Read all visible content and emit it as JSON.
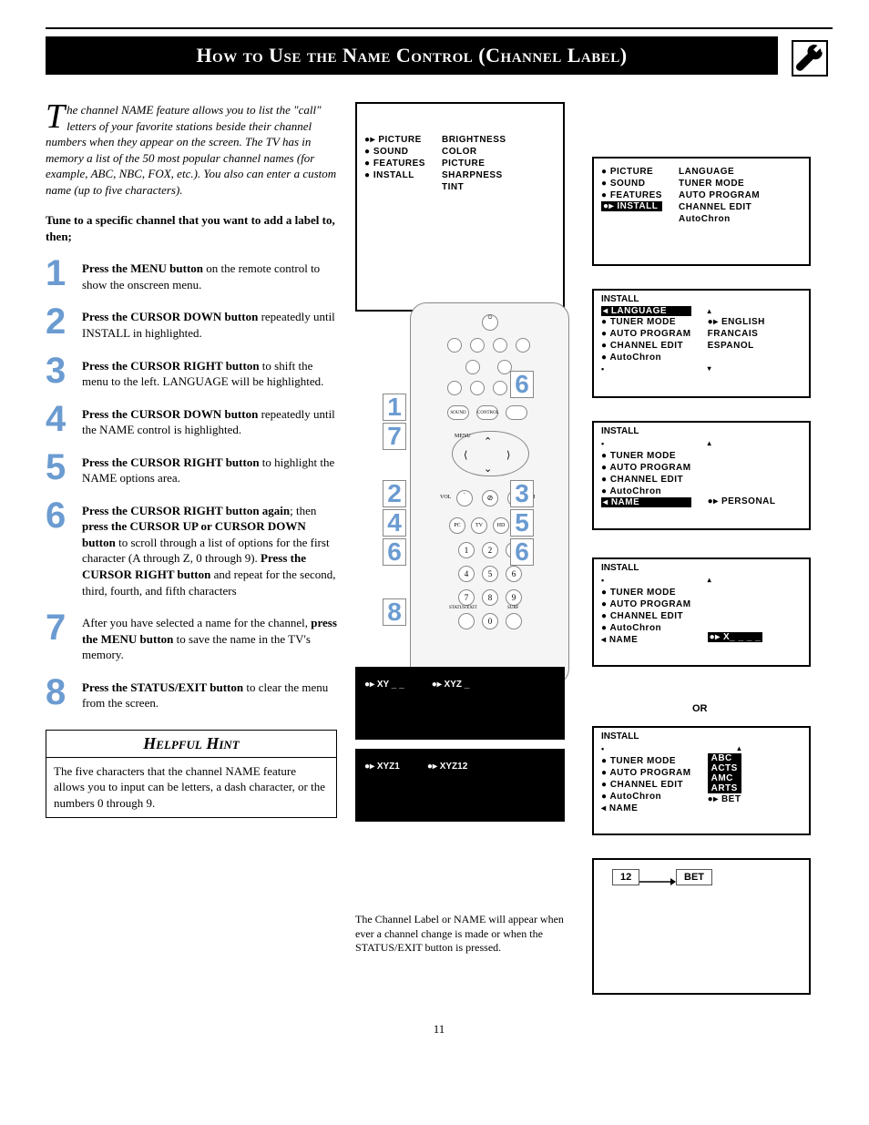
{
  "title": "How to Use the Name Control (Channel Label)",
  "intro": "The channel NAME feature allows you to list the \"call\" letters of your favorite stations beside their channel numbers when they appear on the screen.  The TV has in memory a list of the 50 most popular channel names (for example, ABC, NBC, FOX, etc.).  You also can enter a custom name (up to five characters).",
  "tune_line": "Tune to a specific channel that you want to add a label to, then;",
  "steps": [
    {
      "n": "1",
      "text": "<b>Press the MENU button</b> on the remote control to show the onscreen menu."
    },
    {
      "n": "2",
      "text": "<b>Press the CURSOR DOWN button</b> repeatedly until INSTALL in highlighted."
    },
    {
      "n": "3",
      "text": "<b>Press the CURSOR RIGHT button</b> to shift the menu to the left. LANGUAGE will be highlighted."
    },
    {
      "n": "4",
      "text": "<b>Press the CURSOR DOWN button</b> repeatedly until the NAME control is highlighted."
    },
    {
      "n": "5",
      "text": "<b>Press the CURSOR RIGHT button</b> to highlight the NAME options area."
    },
    {
      "n": "6",
      "text": "<b>Press the CURSOR RIGHT button again</b>; then <b>press the CURSOR UP or CURSOR DOWN button</b> to scroll through a list of options for the first character (A through Z, 0 through 9).  <b>Press the CURSOR RIGHT button</b> and repeat for the second, third, fourth, and fifth characters"
    },
    {
      "n": "7",
      "text": "After you have selected a name for the channel, <b>press the MENU button</b> to save the name in the TV's memory."
    },
    {
      "n": "8",
      "text": "<b>Press the STATUS/EXIT button</b> to clear the menu from the screen."
    }
  ],
  "hint_title": "Helpful Hint",
  "hint_body": "The five characters that the channel NAME feature allows you to input can be letters, a dash character, or the numbers 0 through 9.",
  "caption": "The Channel Label or NAME will appear when ever a channel change is made or when the STATUS/EXIT button is pressed.",
  "page_number": "11",
  "panel_main_left": [
    "PICTURE",
    "SOUND",
    "FEATURES",
    "INSTALL"
  ],
  "panel_main_right": [
    "BRIGHTNESS",
    "COLOR",
    "PICTURE",
    "SHARPNESS",
    "TINT"
  ],
  "panel2_left": [
    "PICTURE",
    "SOUND",
    "FEATURES",
    "INSTALL"
  ],
  "panel2_right": [
    "LANGUAGE",
    "TUNER MODE",
    "AUTO PROGRAM",
    "CHANNEL EDIT",
    "AutoChron"
  ],
  "panel3_title": "INSTALL",
  "panel3_left": [
    "LANGUAGE",
    "TUNER MODE",
    "AUTO PROGRAM",
    "CHANNEL EDIT",
    "AutoChron"
  ],
  "panel3_right": [
    "ENGLISH",
    "FRANCAIS",
    "ESPANOL"
  ],
  "panel4_left": [
    "TUNER MODE",
    "AUTO PROGRAM",
    "CHANNEL EDIT",
    "AutoChron",
    "NAME"
  ],
  "panel4_right": "PERSONAL",
  "panel5_left": [
    "TUNER MODE",
    "AUTO PROGRAM",
    "CHANNEL EDIT",
    "AutoChron",
    "NAME"
  ],
  "panel5_right": "X_ _ _ _",
  "panel6_left": [
    "TUNER MODE",
    "AUTO PROGRAM",
    "CHANNEL EDIT",
    "AutoChron",
    "NAME"
  ],
  "panel6_right": [
    "ABC",
    "ACTS",
    "AMC",
    "ARTS",
    "BET"
  ],
  "or_label": "OR",
  "small_screens": [
    {
      "a": "XY _ _",
      "b": "XYZ _"
    },
    {
      "a": "XYZ1",
      "b": "XYZ12"
    }
  ],
  "channel_num": "12",
  "channel_name": "BET",
  "colors": {
    "accent": "#6b9bd1",
    "black": "#000000",
    "white": "#ffffff"
  }
}
